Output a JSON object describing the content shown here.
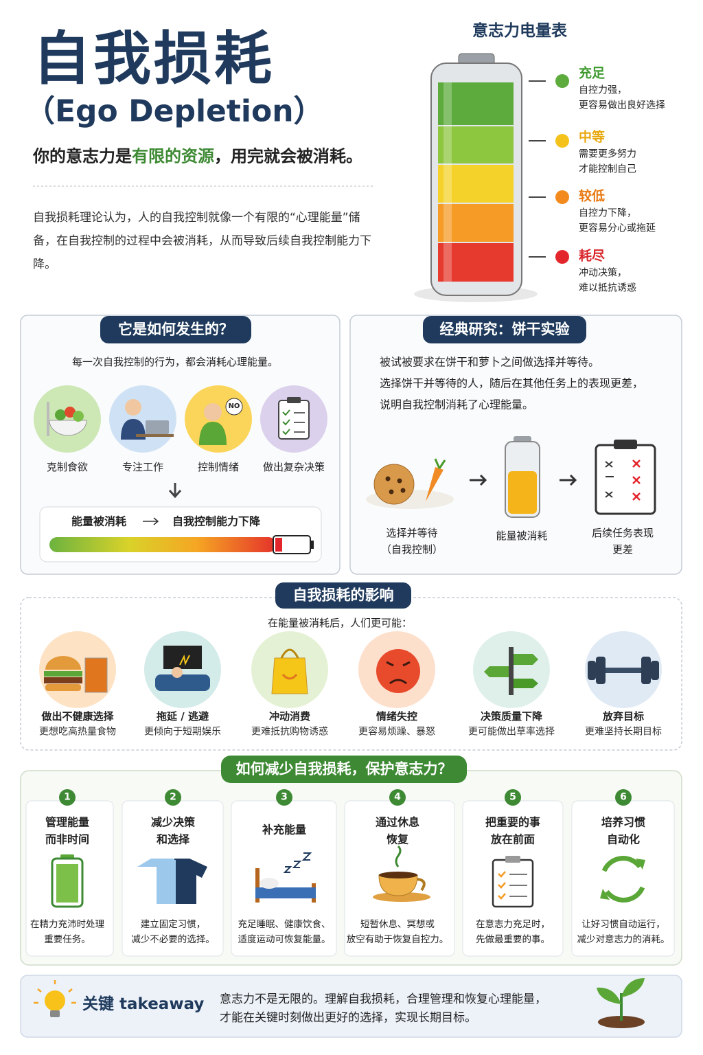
{
  "header": {
    "title": "自我损耗",
    "subtitle": "（Ego Depletion）",
    "tagline": [
      "你的意志力是",
      "有限的资源",
      "，用完就会被消耗。"
    ],
    "intro": "自我损耗理论认为，人的自我控制就像一个有限的“心理能量”储备，在自我控制的过程中会被消耗，从而导致后续自我控制能力下降。"
  },
  "battery": {
    "title": "意志力电量表",
    "levels": [
      {
        "label": "充足",
        "desc": [
          "自控力强，",
          "更容易做出良好选择"
        ]
      },
      {
        "label": "中等",
        "desc": [
          "需要更多努力",
          "才能控制自己"
        ]
      },
      {
        "label": "较低",
        "desc": [
          "自控力下降，",
          "更容易分心或拖延"
        ]
      },
      {
        "label": "耗尽",
        "desc": [
          "冲动决策，",
          "难以抵抗诱惑"
        ]
      }
    ]
  },
  "how": {
    "title": "它是如何发生的？",
    "lead": "每一次自我控制的行为，都会消耗心理能量。",
    "items": [
      "克制食欲",
      "专注工作",
      "控制情绪",
      "做出复杂决策"
    ],
    "icon_text": "NO",
    "flow": [
      "能量被消耗",
      "自我控制能力下降"
    ]
  },
  "study": {
    "title": "经典研究：饼干实验",
    "lines": [
      "被试被要求在饼干和萝卜之间做选择并等待。",
      "选择饼干并等待的人，随后在其他任务上的表现更差，",
      "说明自我控制消耗了心理能量。"
    ],
    "steps": [
      [
        "选择并等待",
        "（自我控制）"
      ],
      [
        "能量被消耗"
      ],
      [
        "后续任务表现",
        "更差"
      ]
    ]
  },
  "effects": {
    "title": "自我损耗的影响",
    "lead": "在能量被消耗后，人们更可能：",
    "items": [
      {
        "title": "做出不健康选择",
        "desc": "更想吃高热量食物"
      },
      {
        "title": "拖延 / 逃避",
        "desc": "更倾向于短期娱乐"
      },
      {
        "title": "冲动消费",
        "desc": "更难抵抗购物诱惑"
      },
      {
        "title": "情绪失控",
        "desc": "更容易烦躁、暴怒"
      },
      {
        "title": "决策质量下降",
        "desc": "更可能做出草率选择"
      },
      {
        "title": "放弃目标",
        "desc": "更难坚持长期目标"
      }
    ]
  },
  "tips": {
    "title": "如何减少自我损耗，保护意志力？",
    "items": [
      {
        "number": 1,
        "title": [
          "管理能量",
          "而非时间"
        ],
        "desc": [
          "在精力充沛时处理",
          "重要任务。"
        ]
      },
      {
        "number": 2,
        "title": [
          "减少决策",
          "和选择"
        ],
        "desc": [
          "建立固定习惯，",
          "减少不必要的选择。"
        ]
      },
      {
        "number": 3,
        "title": [
          "补充能量"
        ],
        "desc": [
          "充足睡眠、健康饮食、",
          "适度运动可恢复能量。"
        ]
      },
      {
        "number": 4,
        "title": [
          "通过休息",
          "恢复"
        ],
        "desc": [
          "短暂休息、冥想或",
          "放空有助于恢复自控力。"
        ]
      },
      {
        "number": 5,
        "title": [
          "把重要的事",
          "放在前面"
        ],
        "desc": [
          "在意志力充足时，",
          "先做最重要的事。"
        ]
      },
      {
        "number": 6,
        "title": [
          "培养习惯",
          "自动化"
        ],
        "desc": [
          "让好习惯自动运行，",
          "减少对意志力的消耗。"
        ]
      }
    ]
  },
  "takeaway": {
    "title": "关键 takeaway",
    "lines": [
      "意志力不是无限的。理解自我损耗，合理管理和恢复心理能量，",
      "才能在关键时刻做出更好的选择，实现长期目标。"
    ]
  }
}
